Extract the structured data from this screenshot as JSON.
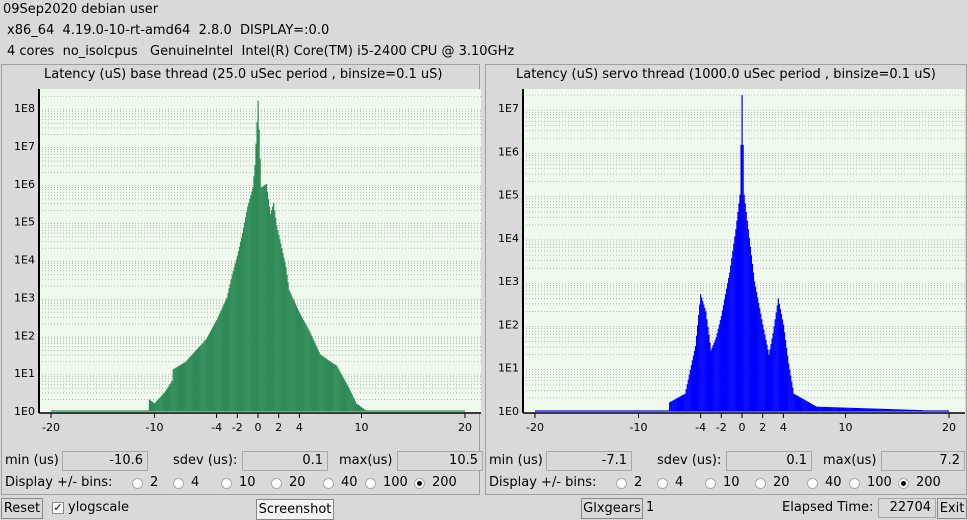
{
  "header": {
    "line1": "09Sep2020 debian user",
    "line2": "x86_64  4.19.0-10-rt-amd64  2.8.0  DISPLAY=:0.0",
    "line3": "4 cores  no_isolcpus   GenuineIntel  Intel(R) Core(TM) i5-2400 CPU @ 3.10GHz"
  },
  "panels": [
    {
      "title": "Latency (uS) base thread (25.0 uSec period , binsize=0.1 uS)",
      "color": "#2e8b57",
      "y_labels": [
        "1E8",
        "1E7",
        "1E6",
        "1E5",
        "1E4",
        "1E3",
        "1E2",
        "1E1",
        "1E0"
      ],
      "x_labels": [
        "-20",
        "-10",
        "-4",
        "-2",
        "0",
        "2",
        "4",
        "10",
        "20"
      ],
      "min_label": "min (us)",
      "min_value": "-10.6",
      "sdev_label": "sdev (us):",
      "sdev_value": "0.1",
      "max_label": "max(us)",
      "max_value": "10.5",
      "bins_label": "Display +/- bins:",
      "bins": [
        "2",
        "4",
        "10",
        "20",
        "40",
        "100",
        "200"
      ],
      "bins_selected": "200"
    },
    {
      "title": "Latency (uS) servo thread (1000.0 uSec period , binsize=0.1 uS)",
      "color": "#0000ff",
      "y_labels": [
        "1E7",
        "1E6",
        "1E5",
        "1E4",
        "1E3",
        "1E2",
        "1E1",
        "1E0"
      ],
      "x_labels": [
        "-20",
        "-10",
        "-4",
        "-2",
        "0",
        "2",
        "4",
        "10",
        "20"
      ],
      "min_label": "min (us)",
      "min_value": "-7.1",
      "sdev_label": "sdev (us):",
      "sdev_value": "0.1",
      "max_label": "max(us)",
      "max_value": "7.2",
      "bins_label": "Display +/- bins:",
      "bins": [
        "2",
        "4",
        "10",
        "20",
        "40",
        "100",
        "200"
      ],
      "bins_selected": "200"
    }
  ],
  "chart_data": [
    {
      "type": "bar",
      "title": "Latency (uS) base thread (25.0 uSec period , binsize=0.1 uS)",
      "y_scale": "log",
      "xlim": [
        -20,
        20
      ],
      "ylim_log10": [
        0,
        8.4
      ],
      "y_ticks": [
        "1E0",
        "1E1",
        "1E2",
        "1E3",
        "1E4",
        "1E5",
        "1E6",
        "1E7",
        "1E8"
      ],
      "x_ticks": [
        -20,
        -10,
        -4,
        -2,
        0,
        2,
        4,
        10,
        20
      ],
      "profile_log10": [
        [
          -20,
          0
        ],
        [
          -10.6,
          0
        ],
        [
          -10.5,
          0.3
        ],
        [
          -10,
          0.2
        ],
        [
          -9,
          0.5
        ],
        [
          -8.3,
          0.8
        ],
        [
          -8.2,
          1.1
        ],
        [
          -7,
          1.3
        ],
        [
          -6,
          1.6
        ],
        [
          -5,
          1.9
        ],
        [
          -4,
          2.4
        ],
        [
          -3,
          3.0
        ],
        [
          -2.5,
          3.6
        ],
        [
          -2,
          4.1
        ],
        [
          -1.5,
          4.7
        ],
        [
          -1,
          5.4
        ],
        [
          -0.5,
          5.9
        ],
        [
          -0.3,
          6.5
        ],
        [
          0,
          8.2
        ],
        [
          0.3,
          5.9
        ],
        [
          0.8,
          6.0
        ],
        [
          1.2,
          5.2
        ],
        [
          1.5,
          5.5
        ],
        [
          1.8,
          4.9
        ],
        [
          2.3,
          4.3
        ],
        [
          2.7,
          3.8
        ],
        [
          3,
          3.2
        ],
        [
          4,
          2.6
        ],
        [
          5,
          2.1
        ],
        [
          6,
          1.5
        ],
        [
          7,
          1.3
        ],
        [
          7.6,
          1.2
        ],
        [
          8,
          1.0
        ],
        [
          8.8,
          0.6
        ],
        [
          9.5,
          0.2
        ],
        [
          10.5,
          0
        ],
        [
          20,
          0
        ]
      ]
    },
    {
      "type": "bar",
      "title": "Latency (uS) servo thread (1000.0 uSec period , binsize=0.1 uS)",
      "y_scale": "log",
      "xlim": [
        -20,
        20
      ],
      "ylim_log10": [
        0,
        7.35
      ],
      "y_ticks": [
        "1E0",
        "1E1",
        "1E2",
        "1E3",
        "1E4",
        "1E5",
        "1E6",
        "1E7"
      ],
      "x_ticks": [
        -20,
        -10,
        -4,
        -2,
        0,
        2,
        4,
        10,
        20
      ],
      "profile_log10": [
        [
          -20,
          0
        ],
        [
          -7.1,
          0
        ],
        [
          -7,
          0.2
        ],
        [
          -5.5,
          0.4
        ],
        [
          -4.5,
          1.5
        ],
        [
          -4,
          2.7
        ],
        [
          -3.5,
          2.3
        ],
        [
          -3,
          1.4
        ],
        [
          -2.5,
          1.7
        ],
        [
          -2,
          2.2
        ],
        [
          -1.2,
          3.2
        ],
        [
          -0.6,
          4.2
        ],
        [
          -0.2,
          5.0
        ],
        [
          0,
          7.3
        ],
        [
          0.2,
          5.0
        ],
        [
          0.6,
          4.2
        ],
        [
          1.2,
          3.0
        ],
        [
          2,
          2.0
        ],
        [
          2.6,
          1.3
        ],
        [
          3,
          1.8
        ],
        [
          3.5,
          2.6
        ],
        [
          4,
          2.0
        ],
        [
          4.5,
          1.1
        ],
        [
          5,
          0.4
        ],
        [
          7.2,
          0.1
        ],
        [
          20,
          0
        ]
      ]
    }
  ],
  "footer": {
    "reset": "Reset",
    "ylogscale": "ylogscale",
    "screenshot": "Screenshot",
    "glxgears": "Glxgears",
    "glxgears_count": "1",
    "elapsed_label": "Elapsed Time:",
    "elapsed_value": "22704",
    "exit": "Exit"
  }
}
